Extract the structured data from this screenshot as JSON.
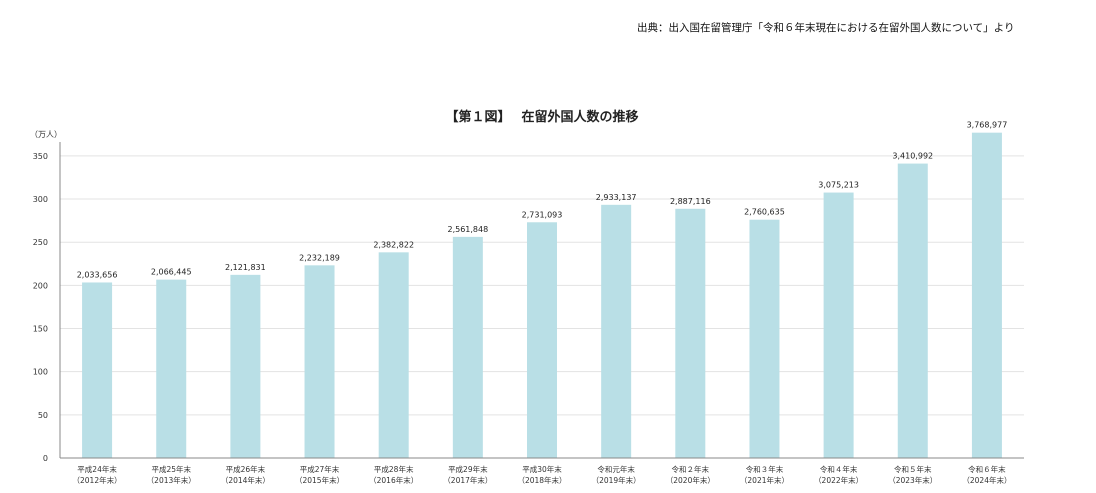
{
  "source": "出典：出入国在留管理庁「令和６年末現在における在留外国人数について」より",
  "chart_data": {
    "type": "bar",
    "title": "【第１図】　 在留外国人数の推移",
    "ylabel": "（万人）",
    "ylim": [
      0,
      380
    ],
    "yticks": [
      0,
      50,
      100,
      150,
      200,
      250,
      300,
      350
    ],
    "grid": true,
    "categories": [
      [
        "平成24年末",
        "（2012年末）"
      ],
      [
        "平成25年末",
        "（2013年末）"
      ],
      [
        "平成26年末",
        "（2014年末）"
      ],
      [
        "平成27年末",
        "（2015年末）"
      ],
      [
        "平成28年末",
        "（2016年末）"
      ],
      [
        "平成29年末",
        "（2017年末）"
      ],
      [
        "平成30年末",
        "（2018年末）"
      ],
      [
        "令和元年末",
        "（2019年末）"
      ],
      [
        "令和２年末",
        "（2020年末）"
      ],
      [
        "令和３年末",
        "（2021年末）"
      ],
      [
        "令和４年末",
        "（2022年末）"
      ],
      [
        "令和５年末",
        "（2023年末）"
      ],
      [
        "令和６年末",
        "（2024年末）"
      ]
    ],
    "values": [
      2033656,
      2066445,
      2121831,
      2232189,
      2382822,
      2561848,
      2731093,
      2933137,
      2887116,
      2760635,
      3075213,
      3410992,
      3768977
    ],
    "value_labels": [
      "2,033,656",
      "2,066,445",
      "2,121,831",
      "2,232,189",
      "2,382,822",
      "2,561,848",
      "2,731,093",
      "2,933,137",
      "2,887,116",
      "2,760,635",
      "3,075,213",
      "3,410,992",
      "3,768,977"
    ],
    "bar_color": "#b9dfe6",
    "grid_color": "#e3e3e3",
    "axis_color": "#888888"
  }
}
